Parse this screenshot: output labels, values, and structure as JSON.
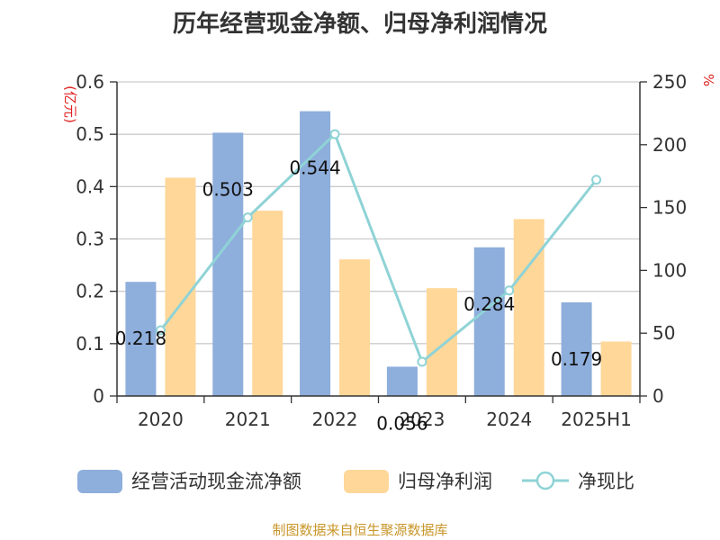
{
  "title": "历年经营现金净额、归母净利润情况",
  "source": "制图数据来自恒生聚源数据库",
  "colors": {
    "bar1": "#8eaedc",
    "bar2": "#ffd799",
    "line": "#8fd3d6",
    "unit": "#e02020",
    "source": "#c8962a"
  },
  "chart_data": {
    "type": "bar",
    "title": "历年经营现金净额、归母净利润情况",
    "categories": [
      "2020",
      "2021",
      "2022",
      "2023",
      "2024",
      "2025H1"
    ],
    "left_axis": {
      "label": "(亿元)",
      "min": 0,
      "max": 0.6,
      "ticks": [
        "0",
        "0.1",
        "0.2",
        "0.3",
        "0.4",
        "0.5",
        "0.6"
      ]
    },
    "right_axis": {
      "label": "%",
      "min": 0,
      "max": 250,
      "ticks": [
        "0",
        "50",
        "100",
        "150",
        "200",
        "250"
      ]
    },
    "grid": true,
    "legend_position": "bottom",
    "series": [
      {
        "name": "经营活动现金流净额",
        "type": "bar",
        "axis": "left",
        "values": [
          0.218,
          0.503,
          0.544,
          0.056,
          0.284,
          0.179
        ],
        "labels": [
          "0.218",
          "0.503",
          "0.544",
          "0.056",
          "0.284",
          "0.179"
        ]
      },
      {
        "name": "归母净利润",
        "type": "bar",
        "axis": "left",
        "values": [
          0.417,
          0.354,
          0.261,
          0.206,
          0.338,
          0.104
        ]
      },
      {
        "name": "净现比",
        "type": "line",
        "axis": "right",
        "values": [
          52.3,
          142.1,
          208.4,
          27.2,
          84.0,
          172.1
        ]
      }
    ]
  }
}
